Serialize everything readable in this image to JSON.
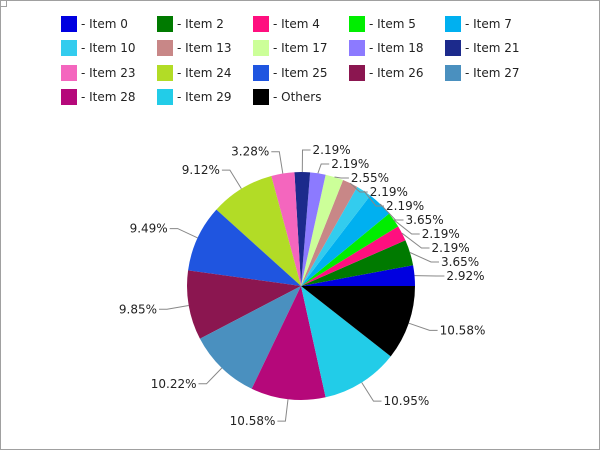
{
  "chart_data": {
    "type": "pie",
    "title": "",
    "legend_position": "top",
    "slices": [
      {
        "label": "Item 0",
        "value": 2.92,
        "display": "2.92%",
        "color": "#0000e0"
      },
      {
        "label": "Item 2",
        "value": 3.65,
        "display": "3.65%",
        "color": "#007a00"
      },
      {
        "label": "Item 4",
        "value": 2.19,
        "display": "2.19%",
        "color": "#ff0f7f"
      },
      {
        "label": "Item 5",
        "value": 2.19,
        "display": "2.19%",
        "color": "#00ee00"
      },
      {
        "label": "Item 7",
        "value": 3.65,
        "display": "3.65%",
        "color": "#00b0f0"
      },
      {
        "label": "Item 10",
        "value": 2.19,
        "display": "2.19%",
        "color": "#33ccee"
      },
      {
        "label": "Item 13",
        "value": 2.19,
        "display": "2.19%",
        "color": "#c88787"
      },
      {
        "label": "Item 17",
        "value": 2.55,
        "display": "2.55%",
        "color": "#ccff99"
      },
      {
        "label": "Item 18",
        "value": 2.19,
        "display": "2.19%",
        "color": "#8c7aff"
      },
      {
        "label": "Item 21",
        "value": 2.19,
        "display": "2.19%",
        "color": "#1c2a8c"
      },
      {
        "label": "Item 23",
        "value": 3.28,
        "display": "3.28%",
        "color": "#f466be"
      },
      {
        "label": "Item 24",
        "value": 9.12,
        "display": "9.12%",
        "color": "#b2dc26"
      },
      {
        "label": "Item 25",
        "value": 9.49,
        "display": "9.49%",
        "color": "#1f55e0"
      },
      {
        "label": "Item 26",
        "value": 9.85,
        "display": "9.85%",
        "color": "#8b1650"
      },
      {
        "label": "Item 27",
        "value": 10.22,
        "display": "10.22%",
        "color": "#4a90bf"
      },
      {
        "label": "Item 28",
        "value": 10.58,
        "display": "10.58%",
        "color": "#b5087a"
      },
      {
        "label": "Item 29",
        "value": 10.95,
        "display": "10.95%",
        "color": "#22cce8"
      },
      {
        "label": "Others",
        "value": 10.58,
        "display": "10.58%",
        "color": "#000000"
      }
    ]
  }
}
